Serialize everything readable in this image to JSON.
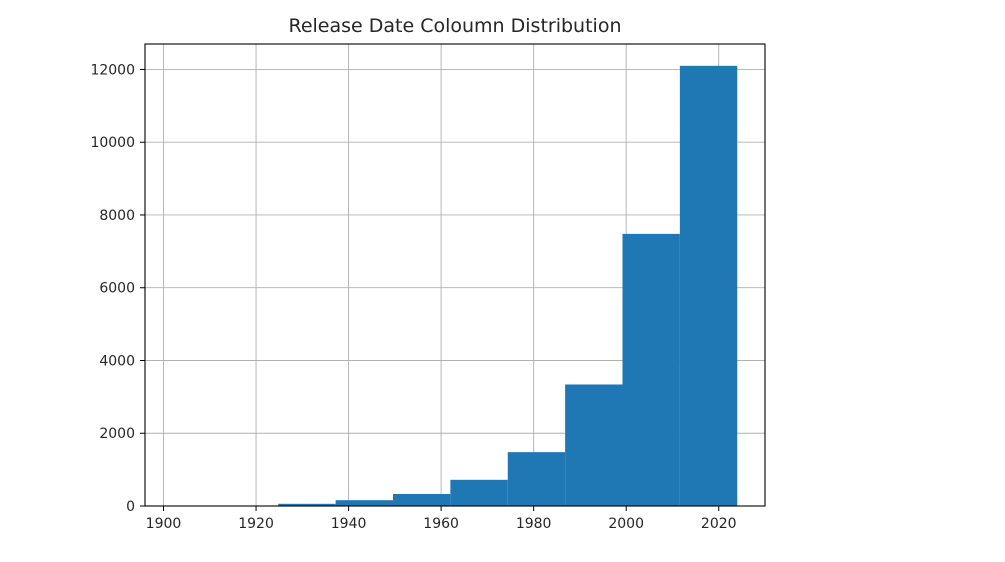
{
  "chart_data": {
    "type": "bar",
    "title": "Release Date Coloumn Distribution",
    "xlabel": "",
    "ylabel": "",
    "bin_edges": [
      1900,
      1912.4,
      1924.8,
      1937.2,
      1949.6,
      1962.0,
      1974.4,
      1986.8,
      1999.2,
      2011.6,
      2024
    ],
    "values": [
      8,
      12,
      60,
      160,
      330,
      720,
      1480,
      3340,
      7480,
      12100
    ],
    "xlim": [
      1896,
      2030
    ],
    "ylim": [
      0,
      12700
    ],
    "x_ticks": [
      1900,
      1920,
      1940,
      1960,
      1980,
      2000,
      2020
    ],
    "y_ticks": [
      0,
      2000,
      4000,
      6000,
      8000,
      10000,
      12000
    ],
    "x_tick_labels": [
      "1900",
      "1920",
      "1940",
      "1960",
      "1980",
      "2000",
      "2020"
    ],
    "y_tick_labels": [
      "0",
      "2000",
      "4000",
      "6000",
      "8000",
      "10000",
      "12000"
    ],
    "grid": true,
    "bar_color": "#1f77b4",
    "grid_color": "#b0b0b0",
    "axis_color": "#000000"
  }
}
